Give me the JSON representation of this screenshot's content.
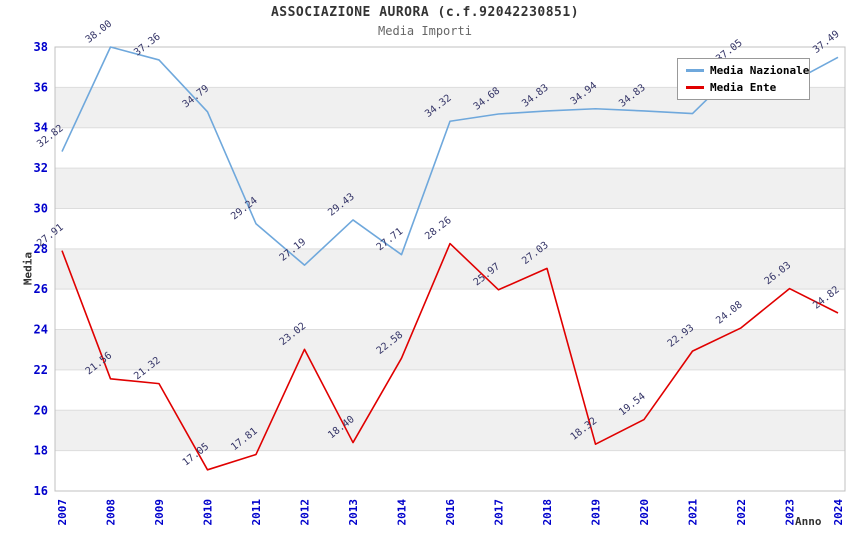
{
  "header": {
    "title": "ASSOCIAZIONE AURORA (c.f.92042230851)",
    "subtitle": "Media Importi"
  },
  "chart_data": {
    "type": "line",
    "title": "ASSOCIAZIONE AURORA (c.f.92042230851)",
    "subtitle": "Media Importi",
    "xlabel": "Anno",
    "ylabel": "Media",
    "ylim": [
      16,
      38
    ],
    "ytick_step": 2,
    "grid": true,
    "legend_position": "top-right",
    "band_colors": [
      "#ffffff",
      "#f0f0f0"
    ],
    "x": [
      "2007",
      "2008",
      "2009",
      "2010",
      "2011",
      "2012",
      "2013",
      "2014",
      "2016",
      "2017",
      "2018",
      "2019",
      "2020",
      "2021",
      "2022",
      "2023",
      "2024"
    ],
    "series": [
      {
        "name": "Media Nazionale",
        "color": "#6fa8dc",
        "values": [
          32.82,
          38.0,
          37.36,
          34.79,
          29.24,
          27.19,
          29.43,
          27.71,
          34.32,
          34.68,
          34.83,
          34.94,
          34.83,
          34.7,
          37.05,
          36.2,
          37.49
        ],
        "labels_hidden_by_legend_indices": [
          13,
          15
        ]
      },
      {
        "name": "Media Ente",
        "color": "#e00000",
        "values": [
          27.91,
          21.56,
          21.32,
          17.05,
          17.81,
          23.02,
          18.4,
          22.58,
          28.26,
          25.97,
          27.03,
          18.32,
          19.54,
          22.93,
          24.08,
          26.03,
          24.82
        ],
        "labels_hidden_by_legend_indices": []
      }
    ]
  },
  "colors": {
    "axis_tick_label": "#0000cc",
    "data_label": "#333366",
    "grid_line": "#dddddd",
    "plot_border": "#c0c0c0",
    "band_alt": "#f0f0f0",
    "title": "#333333",
    "subtitle": "#666666",
    "axis_title": "#333333",
    "legend_border": "#999999",
    "legend_bg": "#ffffff"
  }
}
